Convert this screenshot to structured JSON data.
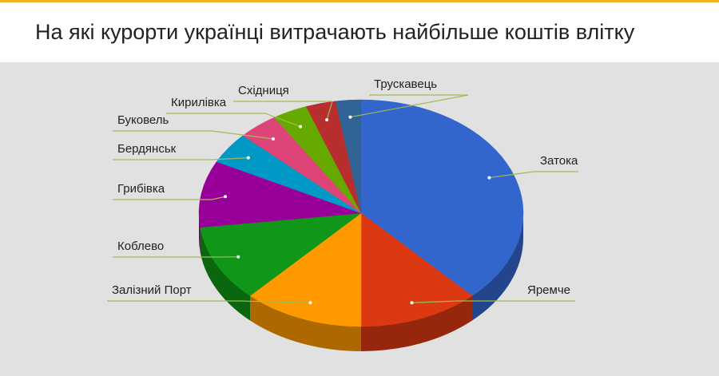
{
  "title": "На які курорти українці витрачають найбільше коштів влітку",
  "colors": {
    "accent_stripe": "#f4b223",
    "chart_background": "#e1e1e1",
    "leader_line": "#9fbb55"
  },
  "chart_data": {
    "type": "pie",
    "style": "3d",
    "title": "На які курорти українці витрачають найбільше коштів влітку",
    "legend": "none",
    "slices": [
      {
        "label": "Затока",
        "value": 38.0,
        "color": "#3366cc"
      },
      {
        "label": "Яремче",
        "value": 12.0,
        "color": "#dc3912"
      },
      {
        "label": "Залізний Порт",
        "value": 12.0,
        "color": "#ff9900"
      },
      {
        "label": "Коблево",
        "value": 11.0,
        "color": "#109618"
      },
      {
        "label": "Грибівка",
        "value": 9.5,
        "color": "#990099"
      },
      {
        "label": "Бердянськ",
        "value": 4.5,
        "color": "#0099c6"
      },
      {
        "label": "Буковель",
        "value": 4.0,
        "color": "#dd4477"
      },
      {
        "label": "Кирилівка",
        "value": 3.5,
        "color": "#66aa00"
      },
      {
        "label": "Східниця",
        "value": 3.0,
        "color": "#b82e2e"
      },
      {
        "label": "Трускавець",
        "value": 2.5,
        "color": "#316395"
      }
    ]
  }
}
